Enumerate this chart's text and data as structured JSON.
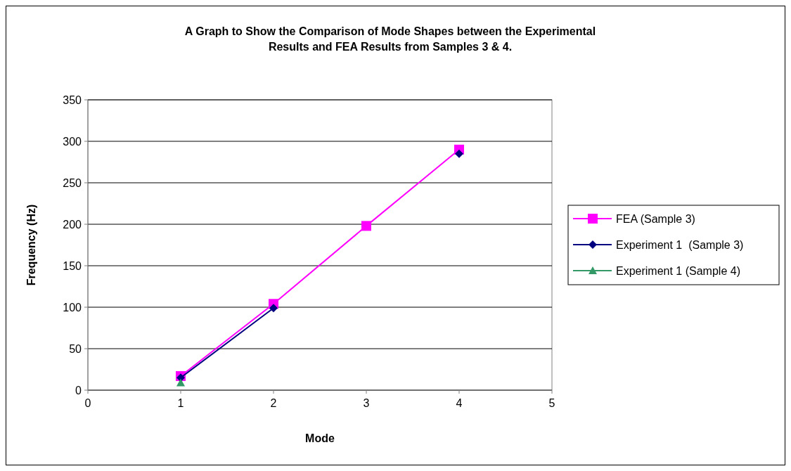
{
  "chart_data": {
    "type": "line",
    "title": "A Graph to Show the Comparison of Mode Shapes between the Experimental Results and FEA Results from Samples 3 & 4.",
    "xlabel": "Mode",
    "ylabel": "Frequency (Hz)",
    "x": [
      1,
      2,
      3,
      4
    ],
    "series": [
      {
        "name": "FEA (Sample 3)",
        "color": "#ff00ff",
        "marker": "square",
        "values": [
          17,
          104,
          198,
          290
        ]
      },
      {
        "name": "Experiment 1  (Sample 3)",
        "color": "#000080",
        "marker": "diamond",
        "values": [
          15,
          99,
          null,
          285
        ]
      },
      {
        "name": "Experiment 1 (Sample 4)",
        "color": "#339966",
        "marker": "triangle",
        "values": [
          9,
          null,
          null,
          null
        ]
      }
    ],
    "xlim": [
      0,
      5
    ],
    "xticks": [
      0,
      1,
      2,
      3,
      4,
      5
    ],
    "ylim": [
      0,
      350
    ],
    "yticks": [
      0,
      50,
      100,
      150,
      200,
      250,
      300,
      350
    ],
    "grid": "y",
    "legend": "right"
  }
}
